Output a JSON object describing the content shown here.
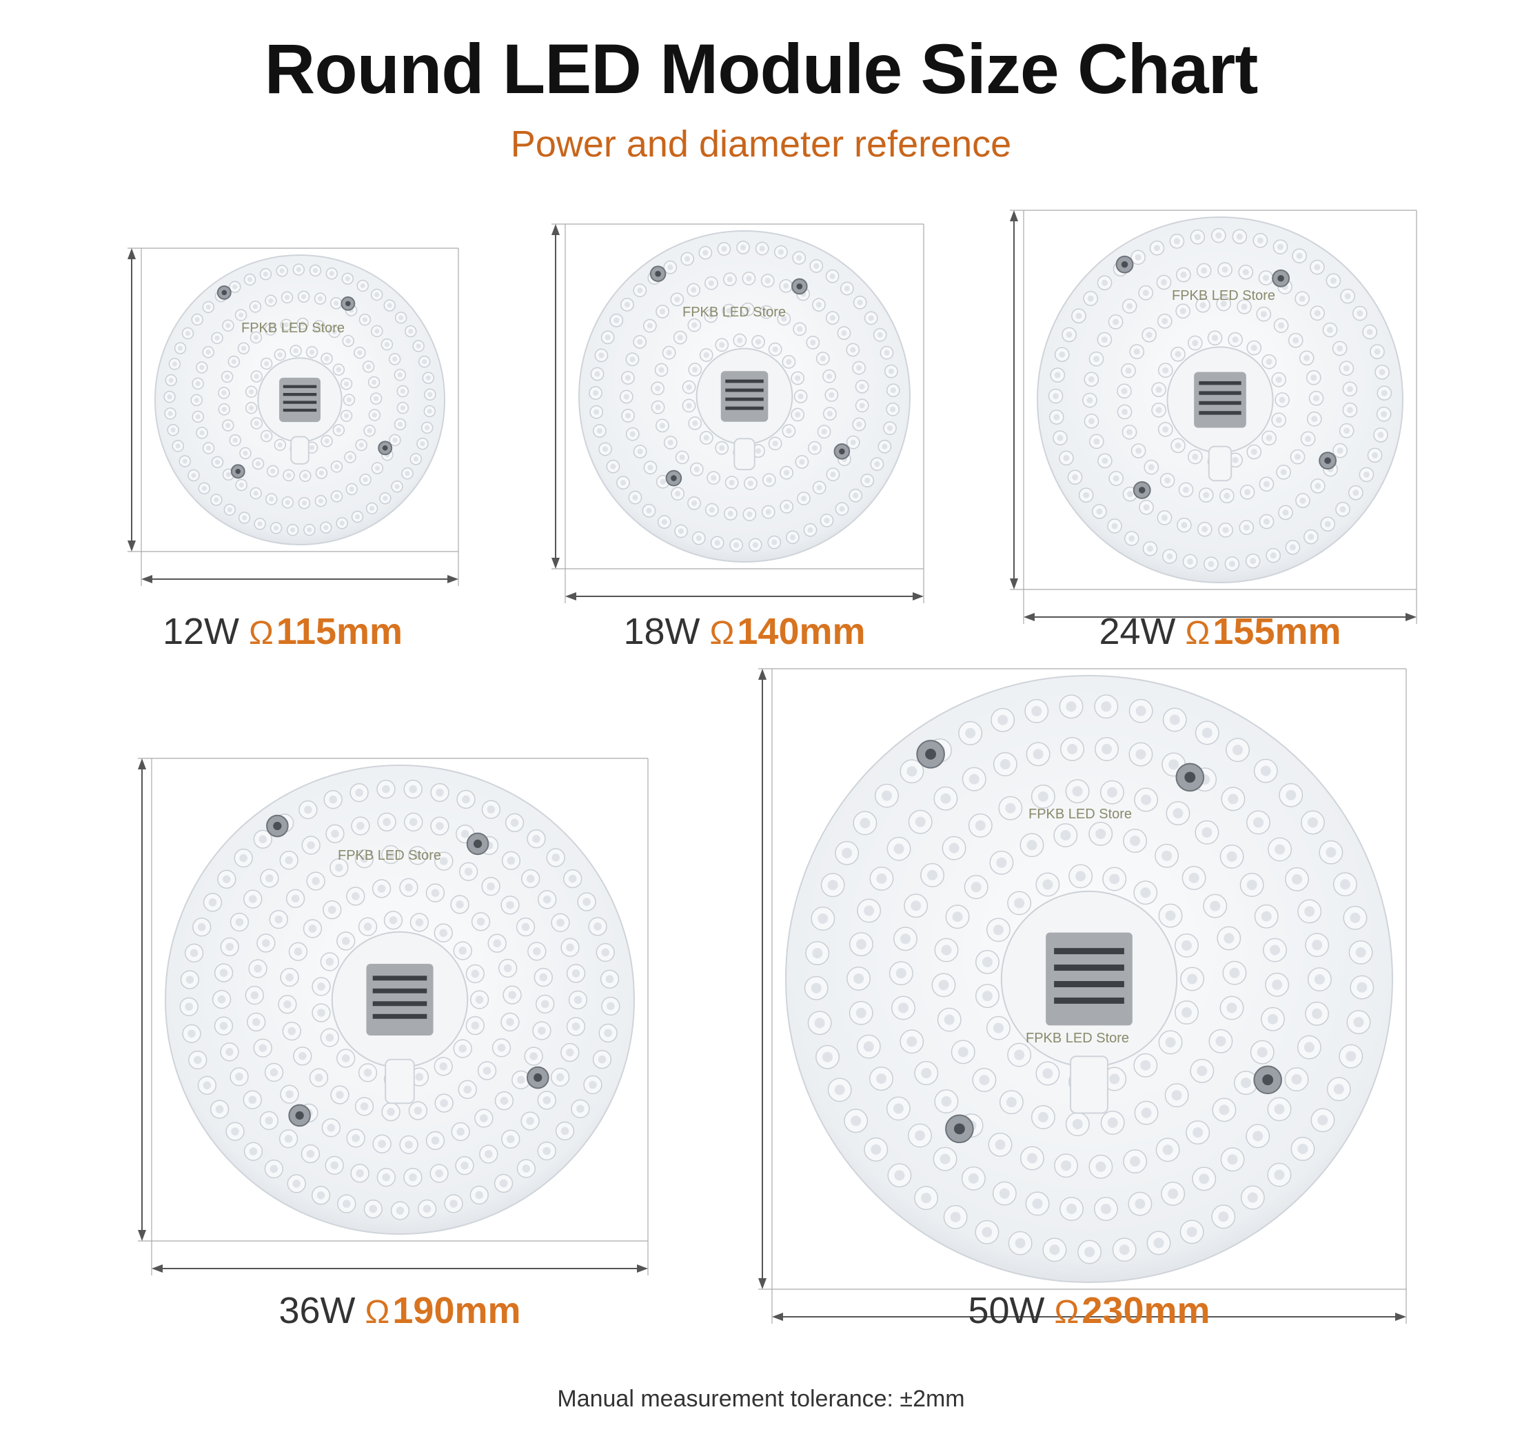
{
  "title": "Round LED Module Size Chart",
  "subtitle": "Power and diameter reference",
  "diameter_symbol": "Ω",
  "watermark": "FPKB LED Store",
  "modules": [
    {
      "power": "12W",
      "diameter": "115mm"
    },
    {
      "power": "18W",
      "diameter": "140mm"
    },
    {
      "power": "24W",
      "diameter": "155mm"
    },
    {
      "power": "36W",
      "diameter": "190mm"
    },
    {
      "power": "50W",
      "diameter": "230mm"
    }
  ],
  "footnote": "Manual measurement tolerance: ±2mm",
  "colors": {
    "title": "#111111",
    "accent": "#d8731f",
    "subtitle": "#c8651b",
    "dimension_line": "#555555"
  }
}
